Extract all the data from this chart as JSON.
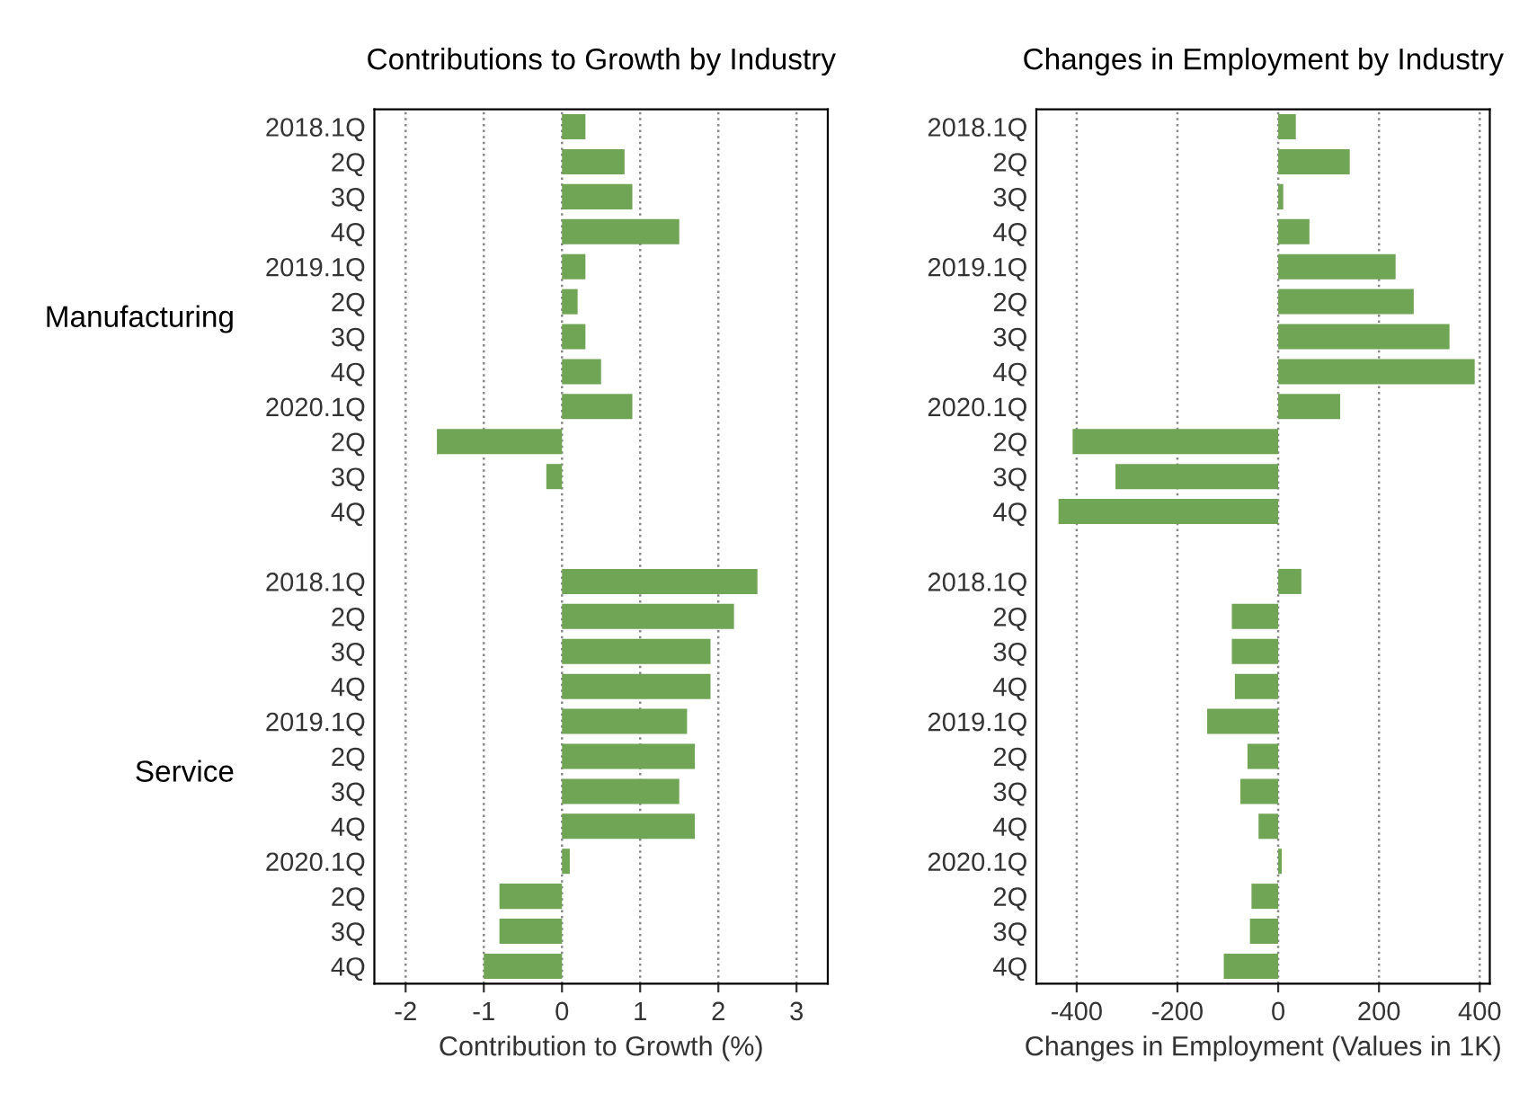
{
  "chart_data": [
    {
      "type": "bar",
      "orientation": "horizontal",
      "title": "Contributions to Growth by Industry",
      "xlabel": "Contribution to Growth (%)",
      "categories": [
        "2018.1Q",
        "2Q",
        "3Q",
        "4Q",
        "2019.1Q",
        "2Q",
        "3Q",
        "4Q",
        "2020.1Q",
        "2Q",
        "3Q",
        "4Q",
        null,
        "2018.1Q",
        "2Q",
        "3Q",
        "4Q",
        "2019.1Q",
        "2Q",
        "3Q",
        "4Q",
        "2020.1Q",
        "2Q",
        "3Q",
        "4Q"
      ],
      "values": [
        0.3,
        0.8,
        0.9,
        1.5,
        0.3,
        0.2,
        0.3,
        0.5,
        0.9,
        -1.6,
        -0.2,
        null,
        null,
        2.5,
        2.2,
        1.9,
        1.9,
        1.6,
        1.7,
        1.5,
        1.7,
        0.1,
        -0.8,
        -0.8,
        -1.0
      ],
      "color": "#70a555",
      "xlim": [
        -2.4,
        3.4
      ],
      "xticks": [
        -2,
        -1,
        0,
        1,
        2,
        3
      ],
      "grid": "x",
      "annotations": [
        "Manufacturing",
        "Service"
      ]
    },
    {
      "type": "bar",
      "orientation": "horizontal",
      "title": "Changes in Employment by Industry",
      "xlabel": "Changes in Employment (Values in 1K)",
      "categories": [
        "2018.1Q",
        "2Q",
        "3Q",
        "4Q",
        "2019.1Q",
        "2Q",
        "3Q",
        "4Q",
        "2020.1Q",
        "2Q",
        "3Q",
        "4Q",
        null,
        "2018.1Q",
        "2Q",
        "3Q",
        "4Q",
        "2019.1Q",
        "2Q",
        "3Q",
        "4Q",
        "2020.1Q",
        "2Q",
        "3Q",
        "4Q"
      ],
      "values": [
        35,
        142,
        10,
        62,
        233,
        269,
        340,
        390,
        123,
        -408,
        -323,
        -436,
        null,
        46,
        -92,
        -92,
        -86,
        -141,
        -61,
        -75,
        -39,
        7,
        -53,
        -56,
        -108
      ],
      "color": "#70a555",
      "xlim": [
        -480,
        420
      ],
      "xticks": [
        -400,
        -200,
        0,
        200,
        400
      ],
      "grid": "x"
    }
  ]
}
